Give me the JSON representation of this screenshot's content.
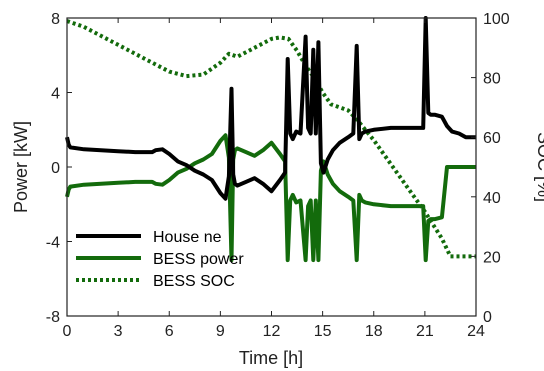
{
  "chart_data": {
    "type": "line",
    "xlabel": "Time [h]",
    "ylabel_left": "Power [kW]",
    "ylabel_right": "SOC [%]",
    "xlim": [
      0,
      24
    ],
    "ylim_left": [
      -8,
      8
    ],
    "ylim_right": [
      0,
      100
    ],
    "x_ticks": [
      "0",
      "3",
      "6",
      "9",
      "12",
      "15",
      "18",
      "21",
      "24"
    ],
    "y_left_ticks": [
      "-8",
      "-4",
      "0",
      "4",
      "8"
    ],
    "y_right_ticks": [
      "0",
      "20",
      "40",
      "60",
      "80",
      "100"
    ],
    "grid": false,
    "legend_placement": "bottom-left",
    "series": [
      {
        "name": "House ne",
        "axis": "left",
        "color": "#000000",
        "style": "solid",
        "x": [
          0,
          0.1,
          0.2,
          1,
          2,
          3,
          4,
          5,
          5.2,
          5.6,
          6,
          6.5,
          7,
          7.5,
          8,
          8.5,
          9,
          9.3,
          9.5,
          9.65,
          9.75,
          9.85,
          10,
          10.5,
          11,
          11.5,
          12,
          12.5,
          12.8,
          12.95,
          13.1,
          13.25,
          13.45,
          13.7,
          14,
          14.15,
          14.3,
          14.45,
          14.6,
          14.75,
          14.9,
          15.05,
          15.3,
          15.6,
          16,
          16.5,
          16.8,
          17,
          17.15,
          17.3,
          17.5,
          18,
          19,
          20,
          20.9,
          21.05,
          21.2,
          21.35,
          21.6,
          22,
          22.3,
          22.6,
          23,
          23.4,
          24
        ],
        "y": [
          1.6,
          1.2,
          1.05,
          0.95,
          0.9,
          0.85,
          0.8,
          0.8,
          0.9,
          0.95,
          0.7,
          0.3,
          0.1,
          -0.2,
          -0.4,
          -0.7,
          -1.4,
          -1.7,
          -0.5,
          4.2,
          -0.4,
          -0.9,
          -1.0,
          -0.8,
          -0.6,
          -0.9,
          -1.3,
          -0.7,
          -0.3,
          5.8,
          1.8,
          1.5,
          1.9,
          1.8,
          7.0,
          2.1,
          1.8,
          6.3,
          1.8,
          6.7,
          0.2,
          -0.3,
          0.4,
          0.9,
          1.3,
          1.6,
          1.8,
          6.5,
          1.5,
          1.8,
          1.9,
          2.0,
          2.1,
          2.1,
          2.1,
          8.0,
          2.9,
          2.8,
          2.8,
          2.7,
          2.2,
          1.9,
          1.8,
          1.6,
          1.6
        ]
      },
      {
        "name": "BESS power",
        "axis": "left",
        "color": "#136b0c",
        "style": "solid",
        "x": [
          0,
          0.1,
          0.2,
          1,
          2,
          3,
          4,
          5,
          5.2,
          5.6,
          6,
          6.5,
          7,
          7.5,
          8,
          8.5,
          9,
          9.3,
          9.5,
          9.65,
          9.75,
          9.85,
          10,
          10.5,
          11,
          11.5,
          12,
          12.5,
          12.8,
          12.95,
          13.1,
          13.25,
          13.45,
          13.7,
          14,
          14.15,
          14.3,
          14.45,
          14.6,
          14.75,
          14.9,
          15.05,
          15.3,
          15.6,
          16,
          16.5,
          16.8,
          17,
          17.15,
          17.3,
          17.5,
          18,
          19,
          20,
          20.9,
          21.05,
          21.2,
          21.35,
          21.6,
          22,
          22.3,
          22.6,
          23,
          23.4,
          24
        ],
        "y": [
          -1.6,
          -1.2,
          -1.05,
          -0.95,
          -0.9,
          -0.85,
          -0.8,
          -0.8,
          -0.9,
          -0.95,
          -0.7,
          -0.3,
          -0.1,
          0.2,
          0.4,
          0.7,
          1.4,
          1.7,
          0.5,
          -5.0,
          0.4,
          0.9,
          1.0,
          0.8,
          0.6,
          0.9,
          1.3,
          0.7,
          0.3,
          -5.0,
          -1.8,
          -1.5,
          -1.9,
          -1.8,
          -5.0,
          -2.1,
          -1.8,
          -5.0,
          -1.8,
          -5.0,
          -0.2,
          0.3,
          -0.4,
          -0.9,
          -1.3,
          -1.6,
          -1.8,
          -5.0,
          -1.5,
          -1.8,
          -1.9,
          -2.0,
          -2.1,
          -2.1,
          -2.1,
          -5.0,
          -2.9,
          -2.8,
          -2.8,
          -2.7,
          0.0,
          0.0,
          0.0,
          0.0,
          0.0
        ]
      },
      {
        "name": "BESS SOC",
        "axis": "right",
        "color": "#136b0c",
        "style": "dotted",
        "x": [
          0,
          1,
          2,
          3,
          4,
          5,
          6,
          7,
          8,
          9,
          9.5,
          10,
          11,
          12,
          12.5,
          13,
          13.5,
          14,
          14.5,
          15,
          15.5,
          16,
          16.5,
          17,
          18,
          19,
          20,
          21,
          22,
          22.5,
          23,
          24
        ],
        "y": [
          99,
          97,
          94,
          91,
          88,
          85,
          82,
          80.5,
          81,
          85,
          88,
          87,
          90,
          93,
          93.5,
          93,
          89,
          84,
          80,
          75,
          71,
          70,
          69,
          66,
          59,
          51,
          43,
          35,
          26,
          20,
          20,
          20
        ]
      }
    ]
  }
}
